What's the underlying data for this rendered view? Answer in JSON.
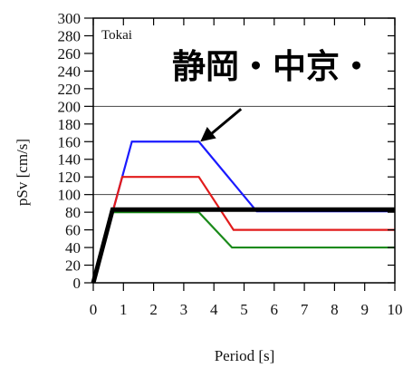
{
  "chart_data": {
    "type": "line",
    "title": "",
    "overlay_text": "静岡・中京・",
    "panel_label": "Tokai",
    "xlabel": "Period [s]",
    "ylabel": "pSv [cm/s]",
    "xlim": [
      0,
      10
    ],
    "ylim": [
      0,
      300
    ],
    "x_ticks": [
      0,
      1,
      2,
      3,
      4,
      5,
      6,
      7,
      8,
      9,
      10
    ],
    "y_ticks": [
      0,
      20,
      40,
      60,
      80,
      100,
      120,
      140,
      160,
      180,
      200,
      220,
      240,
      260,
      280,
      300
    ],
    "gridlines_y": [
      100,
      200
    ],
    "series": [
      {
        "color": "#1a1aff",
        "x": [
          0,
          1.28,
          3.5,
          5.42,
          10
        ],
        "y": [
          0,
          160,
          160,
          81,
          81
        ]
      },
      {
        "color": "#e21b1b",
        "x": [
          0,
          0.96,
          3.5,
          4.65,
          10
        ],
        "y": [
          0,
          120,
          120,
          60,
          60
        ]
      },
      {
        "color": "#1a8a1a",
        "x": [
          0,
          0.62,
          3.5,
          4.6,
          10
        ],
        "y": [
          0,
          80,
          80,
          40,
          40
        ]
      },
      {
        "color": "#000000",
        "x": [
          0,
          0.64,
          10
        ],
        "y": [
          0,
          83,
          83
        ]
      }
    ],
    "arrow": {
      "from": [
        4.9,
        197
      ],
      "to": [
        3.55,
        160
      ]
    }
  }
}
